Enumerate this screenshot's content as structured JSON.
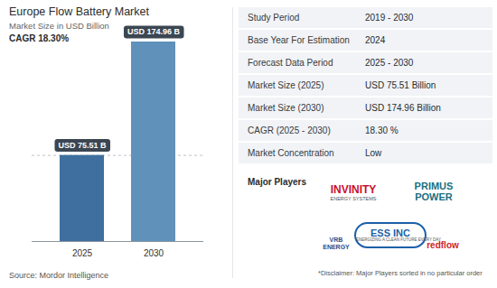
{
  "chart_data": {
    "type": "bar",
    "title": "Europe Flow Battery Market",
    "subtitle": "Market Size in USD Billion",
    "annotation": "CAGR 18.30%",
    "categories": [
      "2025",
      "2030"
    ],
    "values": [
      75.51,
      174.96
    ],
    "value_labels": [
      "USD 75.51 B",
      "USD 174.96 B"
    ],
    "data_labels": true,
    "colors": [
      "#3f6f9f",
      "#5f91bb"
    ],
    "ylim": [
      0,
      174.96
    ],
    "tick_labels": "x"
  },
  "source": "Source: Mordor Intelligence",
  "panel": {
    "rows": [
      [
        "Study Period",
        "2019 - 2030"
      ],
      [
        "Base Year For Estimation",
        "2024"
      ],
      [
        "Forecast Data Period",
        "2025 - 2030"
      ],
      [
        "Market Size (2025)",
        "USD 75.51 Billion"
      ],
      [
        "Market Size (2030)",
        "USD 174.96 Billion"
      ],
      [
        "CAGR (2025 - 2030)",
        "18.30 %"
      ],
      [
        "Market Concentration",
        "Low"
      ]
    ],
    "players_title": "Major Players",
    "players": [
      {
        "name": "INVINITY",
        "tagline": "ENERGY SYSTEMS"
      },
      {
        "name": "PRIMUS POWER",
        "tagline": null
      },
      {
        "name": "ESS INC",
        "tagline": "ENERGIZING A CLEAN FUTURE EVERY DAY"
      },
      {
        "name": "VRB ENERGY",
        "tagline": null
      },
      {
        "name": "redflow",
        "tagline": null
      }
    ],
    "disclaimer": "*Disclaimer: Major Players sorted in no particular order"
  }
}
